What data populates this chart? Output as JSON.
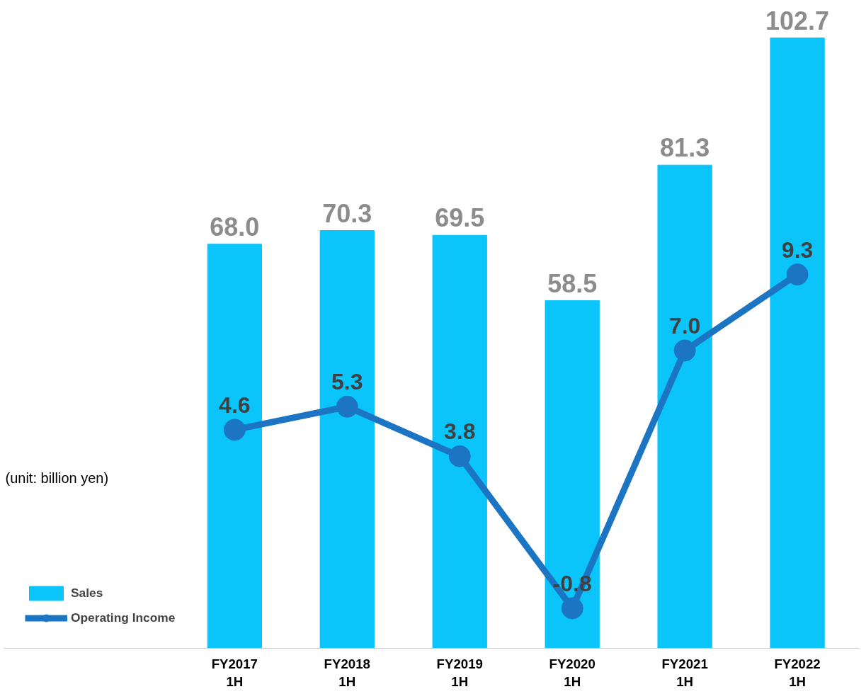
{
  "chart_data": {
    "type": "bar",
    "categories": [
      "FY2017\n1H",
      "FY2018\n1H",
      "FY2019\n1H",
      "FY2020\n1H",
      "FY2021\n1H",
      "FY2022\n1H"
    ],
    "series": [
      {
        "name": "Sales",
        "color": "#0ac4fa",
        "values": [
          68.0,
          70.3,
          69.5,
          58.5,
          81.3,
          102.7
        ],
        "value_labels": [
          "68.0",
          "70.3",
          "69.5",
          "58.5",
          "81.3",
          "102.7"
        ]
      },
      {
        "name": "Operating Income",
        "type": "line",
        "axis": "y2",
        "color": "#1b75c2",
        "values": [
          4.6,
          5.3,
          3.8,
          -0.8,
          7.0,
          9.3
        ],
        "value_labels": [
          "4.6",
          "5.3",
          "3.8",
          "-0.8",
          "7.0",
          "9.3"
        ]
      }
    ],
    "tick_labels": "x",
    "grid": false,
    "legend": "bottom left",
    "marker": "circle",
    "line_style": "solid",
    "annotations": [
      "(unit: billion yen)"
    ]
  }
}
